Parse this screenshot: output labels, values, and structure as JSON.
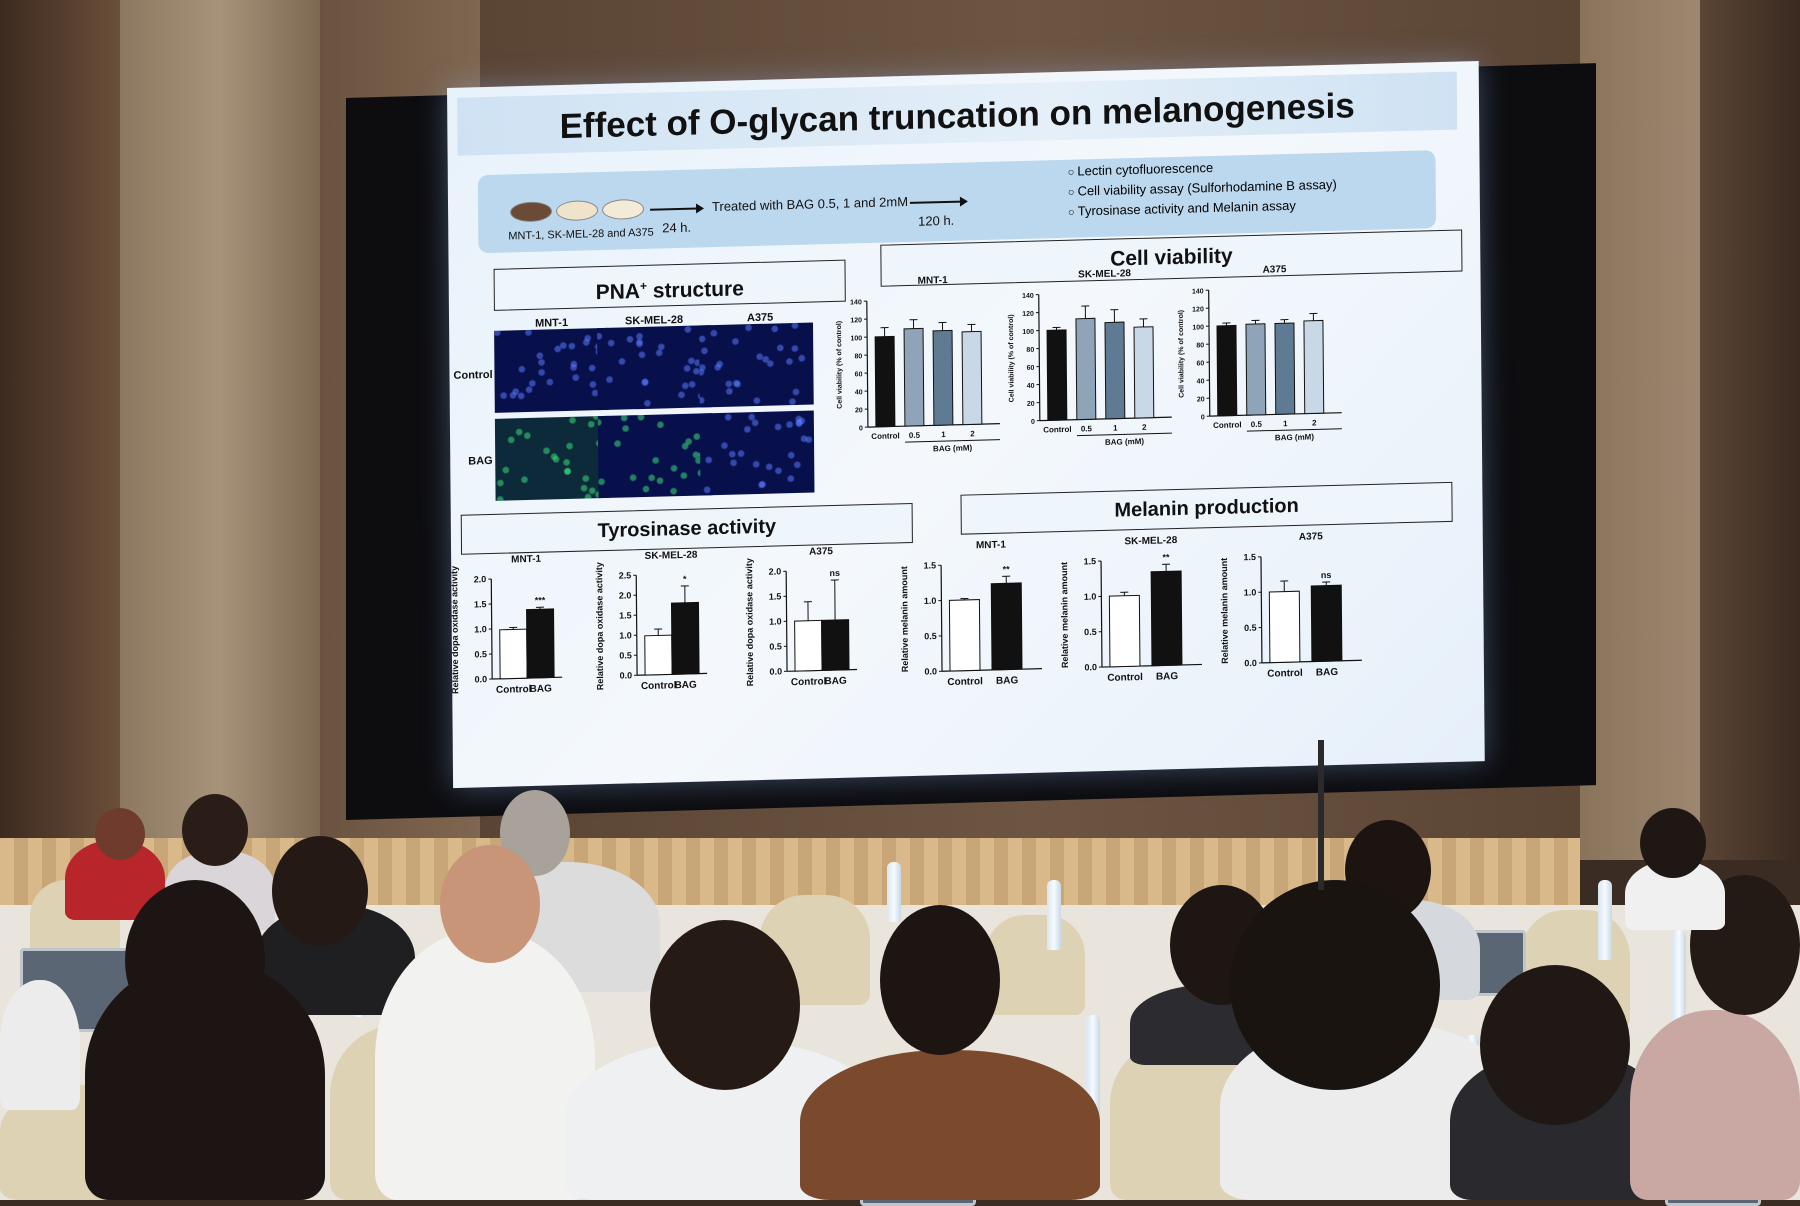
{
  "slide": {
    "title": "Effect of O-glycan truncation on melanogenesis",
    "protocol": {
      "cell_lines": "MNT-1, SK-MEL-28 and A375",
      "time1": "24 h.",
      "treatment": "Treated with BAG 0.5, 1 and 2mM",
      "time2": "120 h.",
      "assays": [
        "Lectin cytofluorescence",
        "Cell viability assay (Sulforhodamine B assay)",
        "Tyrosinase activity and Melanin assay"
      ]
    },
    "pna": {
      "title_main": "PNA",
      "title_sup": "+",
      "title_rest": " structure",
      "columns": [
        "MNT-1",
        "SK-MEL-28",
        "A375"
      ],
      "rows": [
        "Control",
        "BAG"
      ]
    },
    "sections": {
      "viability": "Cell viability",
      "tyrosinase": "Tyrosinase activity",
      "melanin": "Melanin production"
    }
  },
  "chart_data": [
    {
      "type": "bar",
      "group": "Cell viability",
      "title": "MNT-1",
      "categories": [
        "Control",
        "0.5",
        "1",
        "2"
      ],
      "values": [
        100,
        108,
        105,
        103
      ],
      "errors": [
        10,
        10,
        9,
        8
      ],
      "ylabel": "Cell viability (% of control)",
      "xlabel": "BAG (mM)",
      "ylim": [
        0,
        140
      ],
      "yticks": [
        0,
        20,
        40,
        60,
        80,
        100,
        120,
        140
      ],
      "colors": [
        "#111111",
        "#8fa4b8",
        "#5f7a93",
        "#c8d8e6"
      ]
    },
    {
      "type": "bar",
      "group": "Cell viability",
      "title": "SK-MEL-28",
      "categories": [
        "Control",
        "0.5",
        "1",
        "2"
      ],
      "values": [
        100,
        112,
        107,
        101
      ],
      "errors": [
        3,
        14,
        14,
        9
      ],
      "ylabel": "Cell viability (% of control)",
      "xlabel": "BAG (mM)",
      "ylim": [
        0,
        140
      ],
      "yticks": [
        0,
        20,
        40,
        60,
        80,
        100,
        120,
        140
      ],
      "colors": [
        "#111111",
        "#8fa4b8",
        "#5f7a93",
        "#c8d8e6"
      ]
    },
    {
      "type": "bar",
      "group": "Cell viability",
      "title": "A375",
      "categories": [
        "Control",
        "0.5",
        "1",
        "2"
      ],
      "values": [
        100,
        101,
        101,
        103
      ],
      "errors": [
        3,
        4,
        4,
        8
      ],
      "ylabel": "Cell viability (% of control)",
      "xlabel": "BAG (mM)",
      "ylim": [
        0,
        140
      ],
      "yticks": [
        0,
        20,
        40,
        60,
        80,
        100,
        120,
        140
      ],
      "colors": [
        "#111111",
        "#8fa4b8",
        "#5f7a93",
        "#c8d8e6"
      ]
    },
    {
      "type": "bar",
      "group": "Tyrosinase activity",
      "title": "MNT-1",
      "categories": [
        "Control",
        "BAG"
      ],
      "values": [
        0.98,
        1.37
      ],
      "errors": [
        0.04,
        0.04
      ],
      "significance": "***",
      "ylabel": "Relative dopa oxidase activity",
      "ylim": [
        0,
        2.0
      ],
      "yticks": [
        0.0,
        0.5,
        1.0,
        1.5,
        2.0
      ],
      "colors": [
        "#ffffff",
        "#111111"
      ]
    },
    {
      "type": "bar",
      "group": "Tyrosinase activity",
      "title": "SK-MEL-28",
      "categories": [
        "Control",
        "BAG"
      ],
      "values": [
        0.98,
        1.78
      ],
      "errors": [
        0.16,
        0.42
      ],
      "significance": "*",
      "ylabel": "Relative dopa oxidase activity",
      "ylim": [
        0,
        2.5
      ],
      "yticks": [
        0.0,
        0.5,
        1.0,
        1.5,
        2.0,
        2.5
      ],
      "colors": [
        "#ffffff",
        "#111111"
      ]
    },
    {
      "type": "bar",
      "group": "Tyrosinase activity",
      "title": "A375",
      "categories": [
        "Control",
        "BAG"
      ],
      "values": [
        1.0,
        1.0
      ],
      "errors": [
        0.38,
        0.8
      ],
      "significance": "ns",
      "ylabel": "Relative dopa oxidase activity",
      "ylim": [
        0,
        2.0
      ],
      "yticks": [
        0.0,
        0.5,
        1.0,
        1.5,
        2.0
      ],
      "colors": [
        "#ffffff",
        "#111111"
      ]
    },
    {
      "type": "bar",
      "group": "Melanin production",
      "title": "MNT-1",
      "categories": [
        "Control",
        "BAG"
      ],
      "values": [
        1.0,
        1.22
      ],
      "errors": [
        0.02,
        0.1
      ],
      "significance": "**",
      "ylabel": "Relative melanin amount",
      "ylim": [
        0,
        1.5
      ],
      "yticks": [
        0.0,
        0.5,
        1.0,
        1.5
      ],
      "colors": [
        "#ffffff",
        "#111111"
      ]
    },
    {
      "type": "bar",
      "group": "Melanin production",
      "title": "SK-MEL-28",
      "categories": [
        "Control",
        "BAG"
      ],
      "values": [
        1.0,
        1.33
      ],
      "errors": [
        0.05,
        0.1
      ],
      "significance": "**",
      "ylabel": "Relative melanin amount",
      "ylim": [
        0,
        1.5
      ],
      "yticks": [
        0.0,
        0.5,
        1.0,
        1.5
      ],
      "colors": [
        "#ffffff",
        "#111111"
      ]
    },
    {
      "type": "bar",
      "group": "Melanin production",
      "title": "A375",
      "categories": [
        "Control",
        "BAG"
      ],
      "values": [
        1.0,
        1.07
      ],
      "errors": [
        0.15,
        0.05
      ],
      "significance": "ns",
      "ylabel": "Relative melanin amount",
      "ylim": [
        0,
        1.5
      ],
      "yticks": [
        0.0,
        0.5,
        1.0,
        1.5
      ],
      "colors": [
        "#ffffff",
        "#111111"
      ]
    }
  ]
}
